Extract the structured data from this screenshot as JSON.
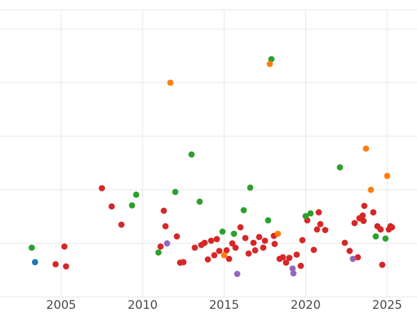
{
  "chart_data": {
    "type": "scatter",
    "title": "",
    "xlabel": "",
    "ylabel": "",
    "grid": true,
    "legend": "none",
    "background": "#ffffff",
    "grid_color": "#e5e5e5",
    "tick_label_color": "#4a4a4a",
    "point_radius": 4.5,
    "x_range": [
      2001.25,
      2026.83
    ],
    "y_range": [
      -0.3,
      5.545
    ],
    "x_ticks": [
      2005,
      2010,
      2015,
      2020,
      2025
    ],
    "x_tick_labels": [
      "2005",
      "2010",
      "2015",
      "2020",
      "2025"
    ],
    "y_gridlines": [
      0,
      1,
      2,
      3,
      4,
      5,
      5.36
    ],
    "series": [
      {
        "name": "red",
        "color": "#d62728",
        "points": [
          [
            2004.66,
            0.61
          ],
          [
            2005.2,
            0.94
          ],
          [
            2005.3,
            0.57
          ],
          [
            2007.5,
            2.03
          ],
          [
            2008.1,
            1.69
          ],
          [
            2008.7,
            1.35
          ],
          [
            2011.1,
            0.94
          ],
          [
            2011.3,
            1.61
          ],
          [
            2011.4,
            1.32
          ],
          [
            2012.1,
            1.13
          ],
          [
            2012.3,
            0.64
          ],
          [
            2012.5,
            0.65
          ],
          [
            2013.2,
            0.92
          ],
          [
            2013.6,
            0.97
          ],
          [
            2013.8,
            1.01
          ],
          [
            2014.0,
            0.7
          ],
          [
            2014.2,
            1.05
          ],
          [
            2014.4,
            0.78
          ],
          [
            2014.55,
            1.08
          ],
          [
            2014.7,
            0.86
          ],
          [
            2015.15,
            0.87
          ],
          [
            2015.3,
            0.71
          ],
          [
            2015.5,
            1.0
          ],
          [
            2015.7,
            0.92
          ],
          [
            2016.0,
            1.3
          ],
          [
            2016.3,
            1.1
          ],
          [
            2016.5,
            0.81
          ],
          [
            2016.8,
            1.01
          ],
          [
            2016.9,
            0.87
          ],
          [
            2017.15,
            1.12
          ],
          [
            2017.4,
            0.92
          ],
          [
            2017.5,
            1.05
          ],
          [
            2018.05,
            1.14
          ],
          [
            2018.1,
            0.99
          ],
          [
            2018.4,
            0.71
          ],
          [
            2018.6,
            0.74
          ],
          [
            2018.8,
            0.64
          ],
          [
            2019.0,
            0.73
          ],
          [
            2019.45,
            0.79
          ],
          [
            2019.7,
            0.58
          ],
          [
            2019.8,
            1.06
          ],
          [
            2020.1,
            1.43
          ],
          [
            2020.5,
            0.88
          ],
          [
            2020.7,
            1.26
          ],
          [
            2020.8,
            1.58
          ],
          [
            2020.9,
            1.36
          ],
          [
            2021.2,
            1.25
          ],
          [
            2022.4,
            1.01
          ],
          [
            2022.7,
            0.86
          ],
          [
            2023.0,
            1.38
          ],
          [
            2023.2,
            0.74
          ],
          [
            2023.3,
            1.47
          ],
          [
            2023.5,
            1.52
          ],
          [
            2023.55,
            1.42
          ],
          [
            2023.6,
            1.7
          ],
          [
            2024.15,
            1.58
          ],
          [
            2024.4,
            1.32
          ],
          [
            2024.6,
            1.26
          ],
          [
            2024.7,
            0.6
          ],
          [
            2025.1,
            1.26
          ],
          [
            2025.2,
            1.32
          ],
          [
            2025.3,
            1.3
          ]
        ]
      },
      {
        "name": "green",
        "color": "#2ca02c",
        "points": [
          [
            2003.2,
            0.92
          ],
          [
            2009.35,
            1.71
          ],
          [
            2009.6,
            1.91
          ],
          [
            2010.97,
            0.83
          ],
          [
            2012.0,
            1.96
          ],
          [
            2013.0,
            2.66
          ],
          [
            2013.5,
            1.78
          ],
          [
            2014.9,
            1.22
          ],
          [
            2015.6,
            1.18
          ],
          [
            2016.2,
            1.62
          ],
          [
            2016.6,
            2.04
          ],
          [
            2017.7,
            1.43
          ],
          [
            2017.9,
            4.44
          ],
          [
            2020.0,
            1.51
          ],
          [
            2020.3,
            1.56
          ],
          [
            2022.1,
            2.42
          ],
          [
            2024.3,
            1.13
          ],
          [
            2024.9,
            1.09
          ]
        ]
      },
      {
        "name": "orange",
        "color": "#ff7f0e",
        "points": [
          [
            2011.7,
            4.0
          ],
          [
            2015.0,
            0.78
          ],
          [
            2017.8,
            4.35
          ],
          [
            2018.3,
            1.18
          ],
          [
            2023.7,
            2.77
          ],
          [
            2024.0,
            2.0
          ],
          [
            2025.0,
            2.26
          ]
        ]
      },
      {
        "name": "purple",
        "color": "#9467bd",
        "points": [
          [
            2011.5,
            1.0
          ],
          [
            2015.8,
            0.43
          ],
          [
            2019.2,
            0.53
          ],
          [
            2019.25,
            0.44
          ],
          [
            2022.9,
            0.71
          ]
        ]
      },
      {
        "name": "blue",
        "color": "#1f77b4",
        "points": [
          [
            2003.4,
            0.65
          ]
        ]
      }
    ]
  }
}
